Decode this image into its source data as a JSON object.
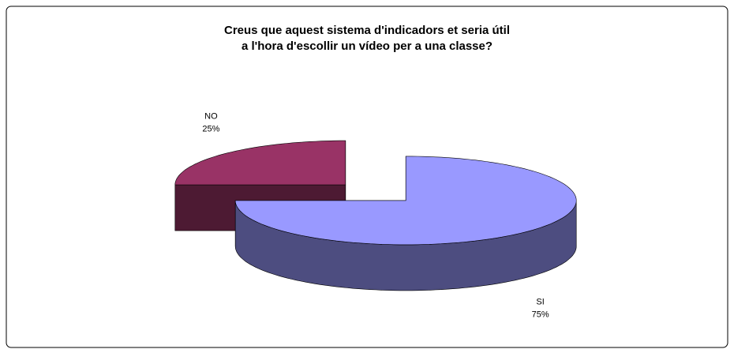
{
  "chart_data": {
    "type": "pie3d",
    "title": [
      "Creus que aquest sistema d'indicadors et seria útil",
      "a l'hora d'escollir un vídeo per a una classe?"
    ],
    "categories": [
      "SI",
      "NO"
    ],
    "values": [
      75,
      25
    ],
    "value_labels": [
      "75%",
      "25%"
    ],
    "colors": [
      "#9999ff",
      "#993366"
    ]
  }
}
